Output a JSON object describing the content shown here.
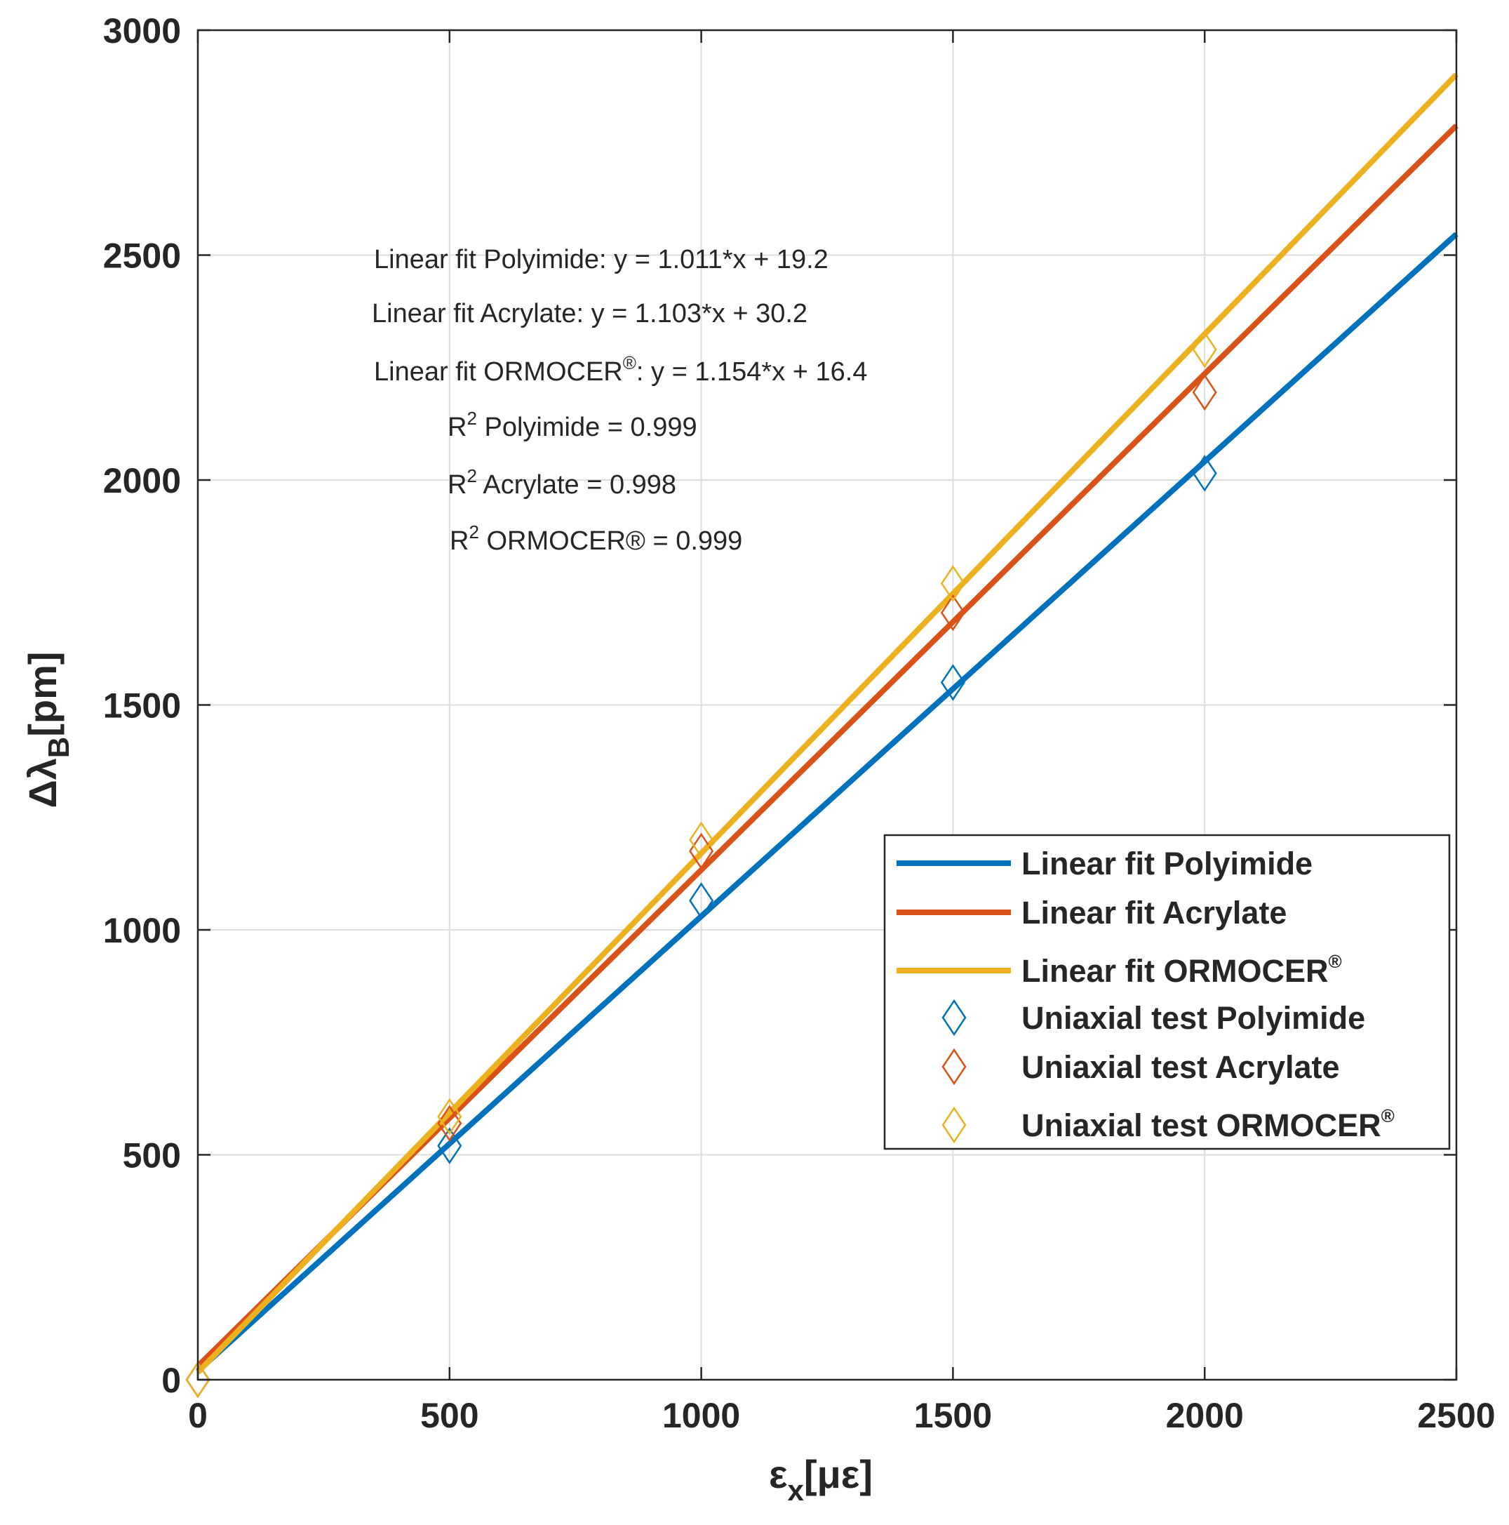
{
  "chart_data": {
    "type": "line",
    "xlabel": {
      "main": "ε",
      "sub": "x",
      "unit": "[με]"
    },
    "ylabel": {
      "main": "Δλ",
      "sub": "B",
      "unit": "[pm]"
    },
    "xlim": [
      0,
      2500
    ],
    "ylim": [
      0,
      3000
    ],
    "xticks": [
      0,
      500,
      1000,
      1500,
      2000,
      2500
    ],
    "yticks": [
      0,
      500,
      1000,
      1500,
      2000,
      2500,
      3000
    ],
    "x_tick_labels": [
      "0",
      "500",
      "1000",
      "1500",
      "2000",
      "2500"
    ],
    "y_tick_labels": [
      "0",
      "500",
      "1000",
      "1500",
      "2000",
      "2500",
      "3000"
    ],
    "grid": true,
    "legend_position": "lower-right",
    "fits": [
      {
        "name": "Linear fit Polyimide",
        "sup": "",
        "slope": 1.011,
        "intercept": 19.2,
        "color": "#0072BD"
      },
      {
        "name": "Linear fit Acrylate",
        "sup": "",
        "slope": 1.103,
        "intercept": 30.2,
        "color": "#D95319"
      },
      {
        "name": "Linear fit ORMOCER",
        "sup": "®",
        "slope": 1.154,
        "intercept": 16.4,
        "color": "#EDB120"
      }
    ],
    "scatter": [
      {
        "name": "Uniaxial test Polyimide",
        "sup": "",
        "color": "#0072BD",
        "x": [
          0,
          500,
          1000,
          1500,
          2000
        ],
        "y": [
          0,
          520,
          1065,
          1550,
          2015
        ]
      },
      {
        "name": "Uniaxial test Acrylate",
        "sup": "",
        "color": "#D95319",
        "x": [
          0,
          500,
          1000,
          1500,
          2000
        ],
        "y": [
          0,
          570,
          1175,
          1705,
          2195
        ]
      },
      {
        "name": "Uniaxial test ORMOCER",
        "sup": "®",
        "color": "#EDB120",
        "x": [
          0,
          500,
          1000,
          1500,
          2000
        ],
        "y": [
          0,
          585,
          1200,
          1770,
          2290
        ]
      }
    ],
    "annotations": [
      {
        "pre": "Linear fit Polyimide:  y = 1.011*x + 19.2",
        "sup": "",
        "post": ""
      },
      {
        "pre": "Linear fit Acrylate:  y = 1.103*x + 30.2",
        "sup": "",
        "post": ""
      },
      {
        "pre": "Linear fit ORMOCER",
        "sup": "®",
        "post": ":  y = 1.154*x + 16.4"
      },
      {
        "pre": "R",
        "sup": "2",
        "post": " Polyimide = 0.999"
      },
      {
        "pre": "R",
        "sup": "2",
        "post": " Acrylate = 0.998"
      },
      {
        "pre": "R",
        "sup": "2",
        "post": " ORMOCER® = 0.999"
      }
    ]
  }
}
